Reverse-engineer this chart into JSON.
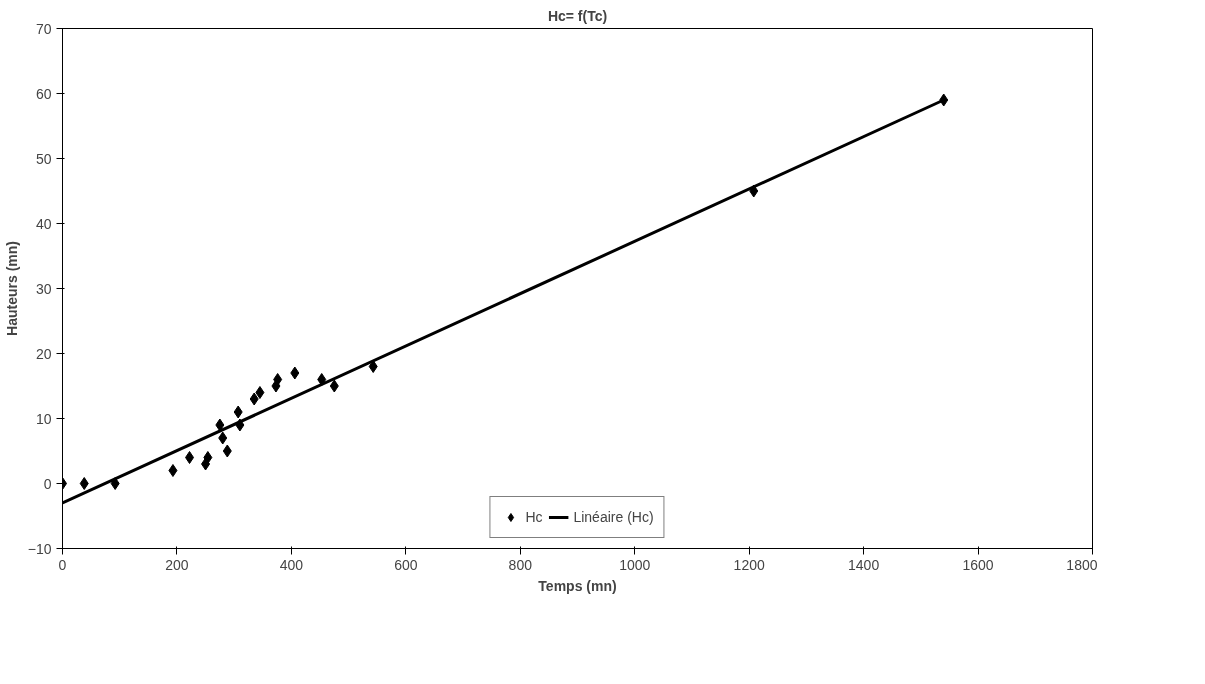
{
  "chart_data": {
    "type": "scatter",
    "title": "Hc= f(Tc)",
    "xlabel": "Temps (mn)",
    "ylabel": "Hauteurs (mn)",
    "xlim": [
      0,
      1800
    ],
    "xticks": [
      0,
      200,
      400,
      600,
      800,
      1000,
      1200,
      1400,
      1600,
      1800
    ],
    "ylim": [
      -10,
      70
    ],
    "yticks": [
      -10,
      0,
      10,
      20,
      30,
      40,
      50,
      60,
      70
    ],
    "grid": false,
    "legend": "bottom",
    "series": [
      {
        "name": "Hc",
        "marker": "diamond",
        "color": "#000000",
        "x": [
          0,
          38,
          92,
          193,
          222,
          250,
          254,
          275,
          280,
          288,
          307,
          310,
          335,
          345,
          373,
          376,
          406,
          453,
          475,
          543,
          1208,
          1540
        ],
        "values": [
          0,
          0,
          0,
          2,
          4,
          3,
          4,
          9,
          7,
          5,
          11,
          9,
          13,
          14,
          15,
          16,
          17,
          16,
          15,
          18,
          45,
          59
        ]
      },
      {
        "name": "Linéaire (Hc)",
        "type": "line",
        "marker": "none",
        "color": "#000000",
        "line_style": "solid",
        "x": [
          0,
          1540
        ],
        "values": [
          -3,
          59
        ]
      }
    ]
  }
}
